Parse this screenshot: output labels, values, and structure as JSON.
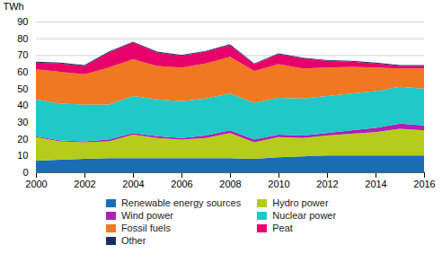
{
  "chart_data": {
    "type": "area",
    "stacked": true,
    "ylabel": "TWh",
    "x": [
      2000,
      2001,
      2002,
      2003,
      2004,
      2005,
      2006,
      2007,
      2008,
      2009,
      2010,
      2011,
      2012,
      2013,
      2014,
      2015,
      2016
    ],
    "series": [
      {
        "name": "Renewable energy sources",
        "color": "#1a6db5",
        "values": [
          7,
          7.5,
          8,
          8.5,
          8.5,
          8.5,
          8.5,
          8.5,
          8.5,
          8,
          9,
          9.5,
          10,
          10,
          10,
          10,
          10
        ]
      },
      {
        "name": "Hydro power",
        "color": "#b5cc1a",
        "values": [
          14,
          11,
          10,
          10,
          14,
          12,
          11,
          12,
          15,
          10,
          12,
          11,
          12,
          13,
          14,
          16,
          15
        ]
      },
      {
        "name": "Wind power",
        "color": "#b020b5",
        "values": [
          0.5,
          0.5,
          0.5,
          1.0,
          1.0,
          1.0,
          1.0,
          1.5,
          1.5,
          1.5,
          1.5,
          1.5,
          1.5,
          2.0,
          2.5,
          3.0,
          3.0
        ]
      },
      {
        "name": "Nuclear power",
        "color": "#20c8c8",
        "values": [
          22,
          22,
          22,
          21,
          22,
          22,
          22,
          22,
          22,
          22,
          22,
          22,
          22,
          22,
          22,
          22,
          22
        ]
      },
      {
        "name": "Fossil fuels",
        "color": "#f07820",
        "values": [
          18,
          19,
          18,
          22,
          22,
          20,
          20,
          21,
          22,
          19,
          20,
          18,
          17,
          16,
          14,
          11,
          12
        ]
      },
      {
        "name": "Peat",
        "color": "#e8006a",
        "values": [
          4,
          5,
          5,
          9,
          10,
          8,
          7,
          7,
          7,
          4,
          6,
          6,
          4,
          3,
          2.5,
          1.5,
          1.5
        ]
      },
      {
        "name": "Other",
        "color": "#1a3060",
        "values": [
          0.5,
          0.5,
          0.5,
          0.5,
          0.5,
          0.5,
          0.5,
          0.5,
          0.5,
          0.5,
          0.5,
          0.5,
          0.5,
          0.5,
          0.5,
          0.5,
          0.5
        ]
      }
    ],
    "xlim": [
      2000,
      2016
    ],
    "xticks": [
      2000,
      2002,
      2004,
      2006,
      2008,
      2010,
      2012,
      2014,
      2016
    ],
    "ylim": [
      0,
      90
    ],
    "yticks": [
      0,
      10,
      20,
      30,
      40,
      50,
      60,
      70,
      80,
      90
    ],
    "grid": true,
    "legend": "bottom"
  }
}
